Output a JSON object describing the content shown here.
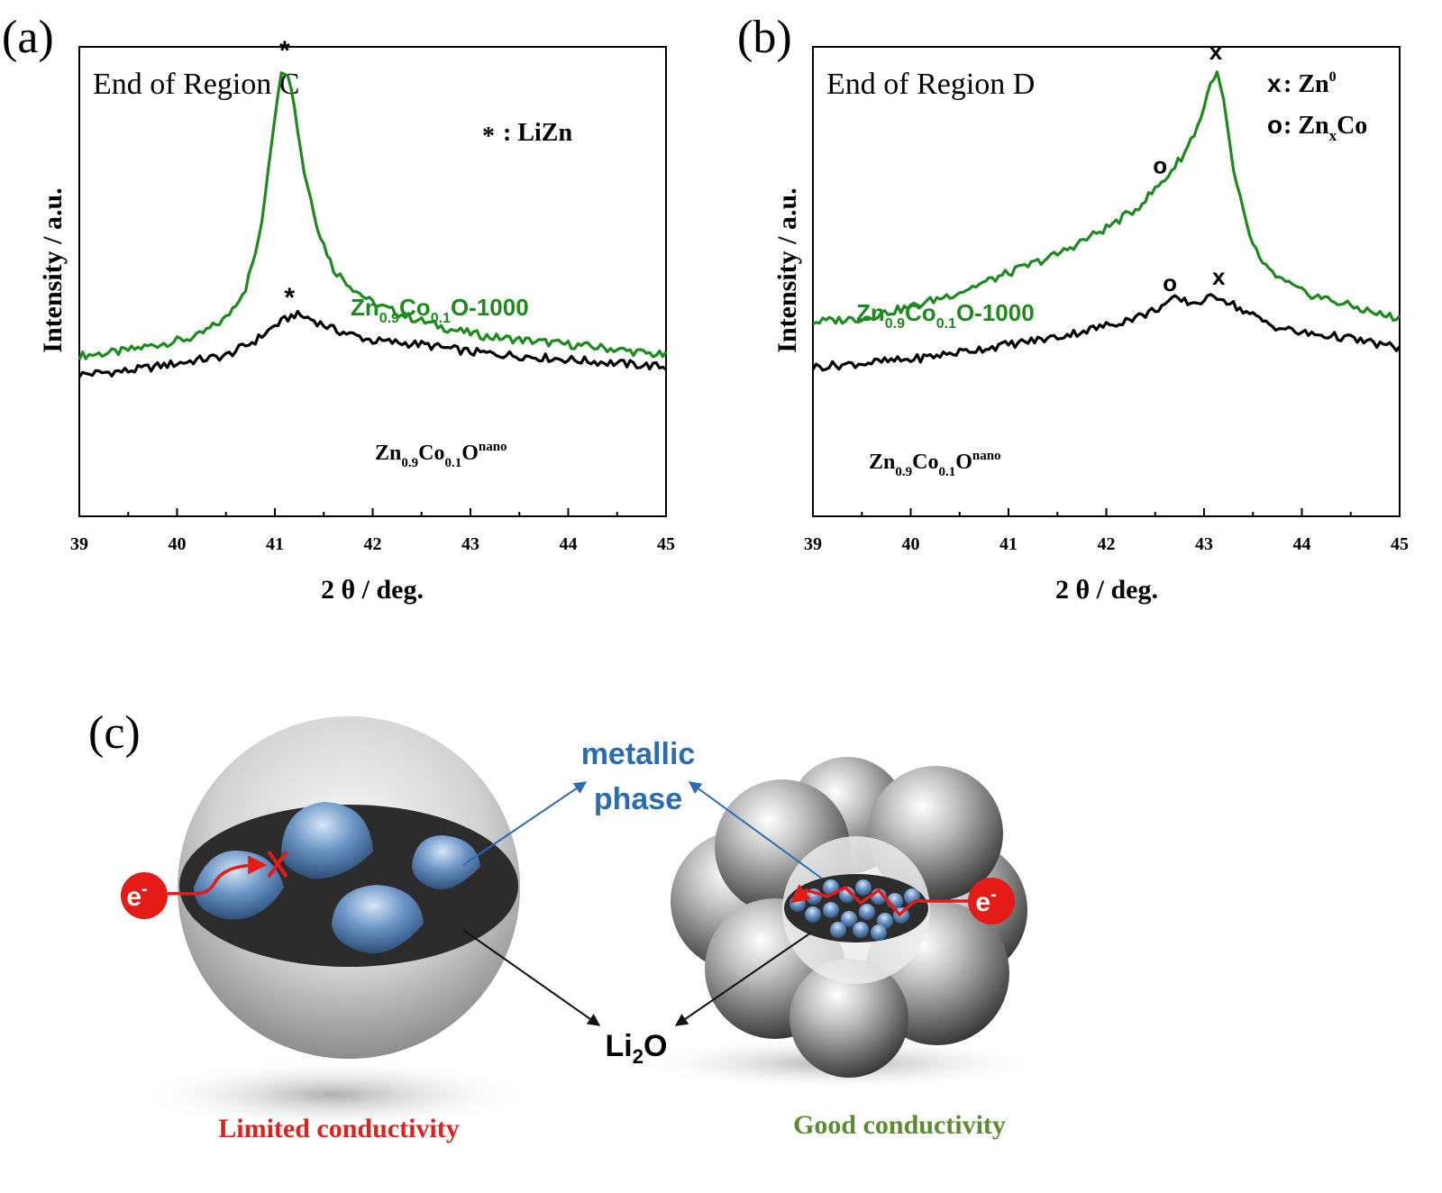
{
  "panel_labels": {
    "a": "(a)",
    "b": "(b)",
    "c": "(c)"
  },
  "chart_data": [
    {
      "type": "line",
      "panel": "(a)",
      "title": "End of Region C",
      "xlabel": "2 θ / deg.",
      "ylabel": "Intensity / a.u.",
      "xlim": [
        39,
        45
      ],
      "xticks": [
        "39",
        "40",
        "41",
        "42",
        "43",
        "44",
        "45"
      ],
      "y_ticks_shown": false,
      "legend_marker_symbol": "*",
      "legend_marker_text": ": LiZn",
      "series": [
        {
          "label_base": "Zn",
          "label_sub1": "0.9",
          "label_mid": "Co",
          "label_sub2": "0.1",
          "label_tail": "O-1000",
          "color": "#1e8a1e",
          "x": [
            39.0,
            39.4,
            39.8,
            40.2,
            40.5,
            40.7,
            40.85,
            40.95,
            41.05,
            41.1,
            41.15,
            41.2,
            41.3,
            41.45,
            41.6,
            41.8,
            42.0,
            42.4,
            42.8,
            43.2,
            43.6,
            44.0,
            44.4,
            45.0
          ],
          "y": [
            0.24,
            0.25,
            0.27,
            0.29,
            0.34,
            0.42,
            0.56,
            0.78,
            0.98,
            1.0,
            0.99,
            0.9,
            0.73,
            0.57,
            0.47,
            0.42,
            0.38,
            0.34,
            0.31,
            0.29,
            0.28,
            0.27,
            0.26,
            0.24
          ],
          "markers": [
            {
              "x": 41.1,
              "symbol": "*"
            }
          ]
        },
        {
          "label_base": "Zn",
          "label_sub1": "0.9",
          "label_mid": "Co",
          "label_sub2": "0.1",
          "label_tail": "O",
          "label_sup": "nano",
          "color": "#000000",
          "x": [
            39.0,
            39.5,
            40.0,
            40.5,
            40.8,
            41.0,
            41.2,
            41.35,
            41.6,
            42.0,
            42.5,
            43.0,
            43.5,
            44.0,
            44.5,
            45.0
          ],
          "y": [
            0.19,
            0.2,
            0.22,
            0.24,
            0.28,
            0.32,
            0.35,
            0.34,
            0.31,
            0.28,
            0.27,
            0.25,
            0.24,
            0.23,
            0.22,
            0.21
          ],
          "markers": [
            {
              "x": 41.15,
              "symbol": "*"
            }
          ]
        }
      ]
    },
    {
      "type": "line",
      "panel": "(b)",
      "title": "End of Region D",
      "xlabel": "2 θ / deg.",
      "ylabel": "Intensity / a.u.",
      "xlim": [
        39,
        45
      ],
      "xticks": [
        "39",
        "40",
        "41",
        "42",
        "43",
        "44",
        "45"
      ],
      "y_ticks_shown": false,
      "legend": [
        {
          "symbol": "x",
          "sep": ": ",
          "text": "Zn",
          "sup": "0"
        },
        {
          "symbol": "o",
          "sep": ": ",
          "text": "Zn",
          "sub": "x",
          "tail": "Co"
        }
      ],
      "series": [
        {
          "label_base": "Zn",
          "label_sub1": "0.9",
          "label_mid": "Co",
          "label_sub2": "0.1",
          "label_tail": "O-1000",
          "color": "#1e8a1e",
          "x": [
            39.0,
            39.5,
            40.0,
            40.5,
            41.0,
            41.5,
            42.0,
            42.3,
            42.6,
            42.8,
            42.95,
            43.05,
            43.12,
            43.2,
            43.3,
            43.45,
            43.6,
            43.8,
            44.0,
            44.4,
            44.8,
            45.0
          ],
          "y": [
            0.33,
            0.34,
            0.37,
            0.41,
            0.46,
            0.51,
            0.58,
            0.63,
            0.71,
            0.78,
            0.86,
            0.95,
            1.0,
            0.92,
            0.73,
            0.57,
            0.48,
            0.44,
            0.41,
            0.38,
            0.35,
            0.34
          ],
          "markers": [
            {
              "x": 43.12,
              "symbol": "x"
            },
            {
              "x": 42.55,
              "symbol": "o"
            }
          ]
        },
        {
          "label_base": "Zn",
          "label_sub1": "0.9",
          "label_mid": "Co",
          "label_sub2": "0.1",
          "label_tail": "O",
          "label_sup": "nano",
          "color": "#000000",
          "x": [
            39.0,
            39.5,
            40.0,
            40.5,
            41.0,
            41.5,
            42.0,
            42.4,
            42.7,
            42.9,
            43.15,
            43.4,
            43.7,
            44.0,
            44.4,
            45.0
          ],
          "y": [
            0.21,
            0.22,
            0.23,
            0.25,
            0.27,
            0.29,
            0.32,
            0.35,
            0.39,
            0.38,
            0.4,
            0.36,
            0.32,
            0.3,
            0.29,
            0.26
          ],
          "markers": [
            {
              "x": 42.65,
              "symbol": "o"
            },
            {
              "x": 43.15,
              "symbol": "x"
            }
          ]
        }
      ]
    }
  ],
  "diagram_c": {
    "electron_symbol": "e",
    "electron_sup": "-",
    "metallic_line1": "metallic",
    "metallic_line2": "phase",
    "li2o_base": "Li",
    "li2o_sub": "2",
    "li2o_tail": "O",
    "limited_label": "Limited conductivity",
    "good_label": "Good conductivity",
    "colors": {
      "limited": "#e0201c",
      "good": "#5a8a32",
      "metallic": "#2b6cb0",
      "electron": "#e41b17"
    }
  }
}
